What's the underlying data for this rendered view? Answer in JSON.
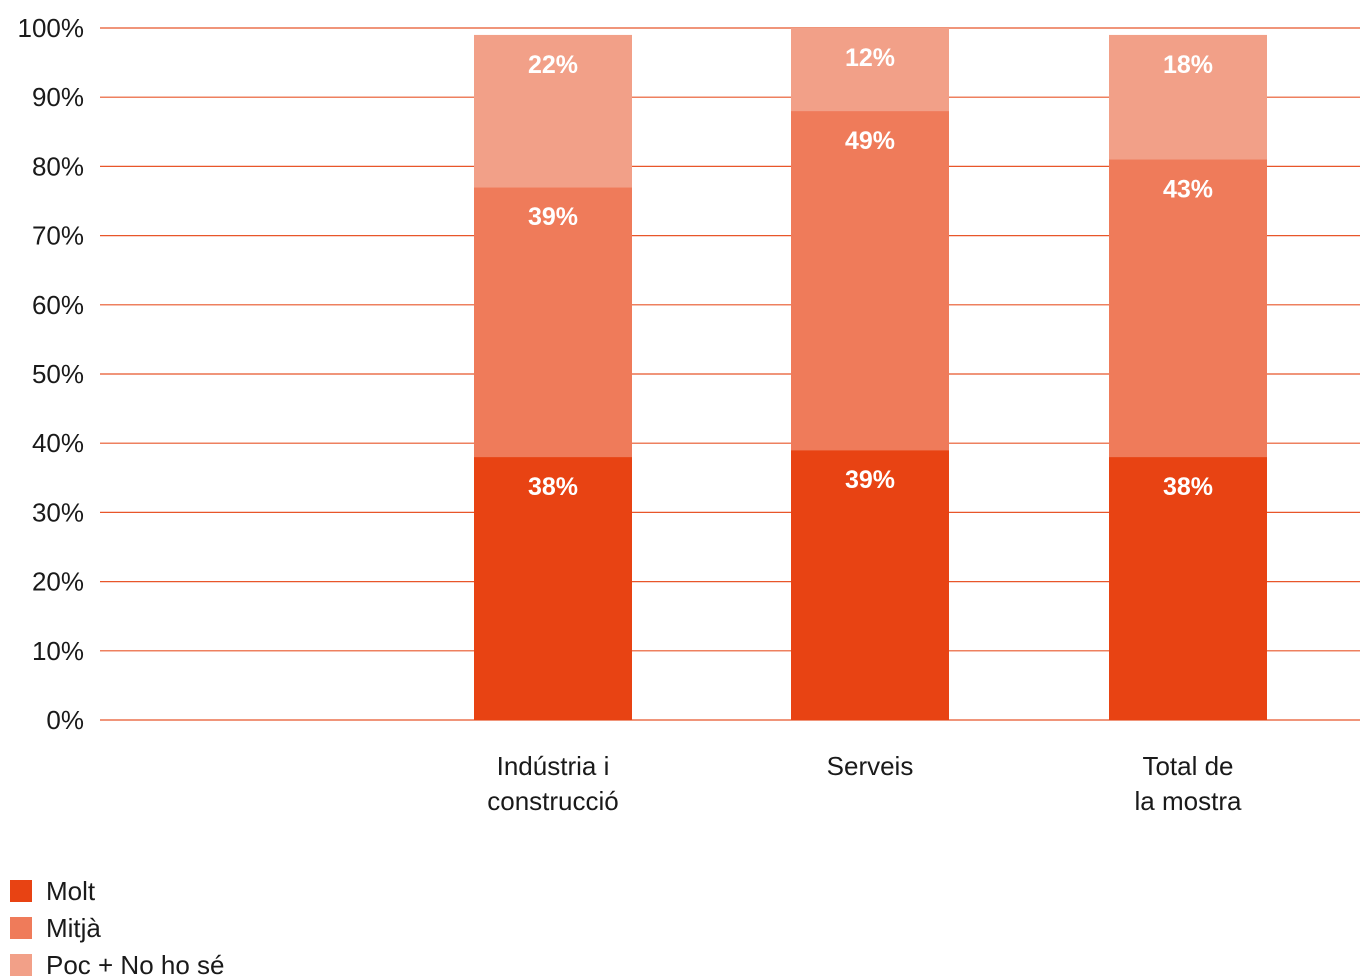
{
  "chart_data": {
    "type": "bar",
    "stacked": true,
    "categories": [
      [
        "Indústria i",
        "construcció"
      ],
      [
        "Serveis"
      ],
      [
        "Total de",
        "la mostra"
      ]
    ],
    "series": [
      {
        "name": "Molt",
        "color": "#e84313",
        "values": [
          38,
          39,
          38
        ],
        "labels": [
          "38%",
          "39%",
          "38%"
        ]
      },
      {
        "name": "Mitjà",
        "color": "#ef7b5a",
        "values": [
          39,
          49,
          43
        ],
        "labels": [
          "39%",
          "49%",
          "43%"
        ]
      },
      {
        "name": "Poc + No ho sé",
        "color": "#f2a088",
        "values": [
          22,
          12,
          18
        ],
        "labels": [
          "22%",
          "12%",
          "18%"
        ]
      }
    ],
    "ylim": [
      0,
      100
    ],
    "yticks": [
      "0%",
      "10%",
      "20%",
      "30%",
      "40%",
      "50%",
      "60%",
      "70%",
      "80%",
      "90%",
      "100%"
    ],
    "grid": true,
    "grid_color": "#e8562a",
    "legend_position": "bottom-left"
  }
}
